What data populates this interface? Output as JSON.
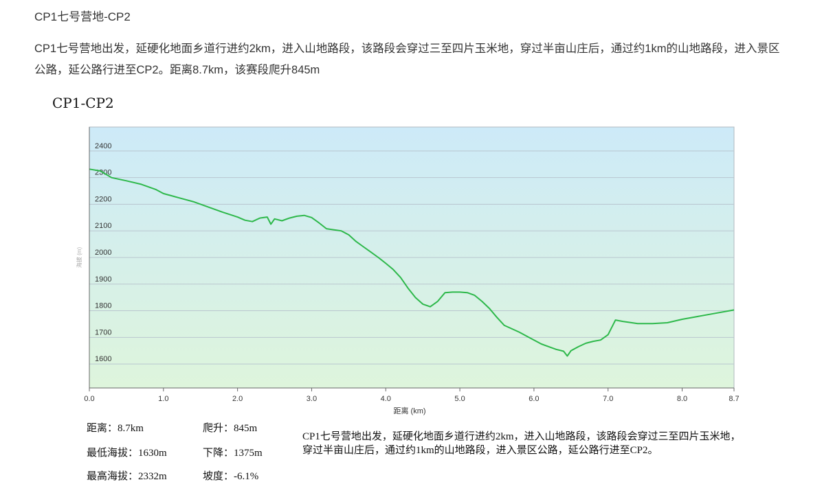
{
  "article": {
    "heading": "CP1七号营地-CP2",
    "description": "CP1七号营地出发，延硬化地面乡道行进约2km，进入山地路段，该路段会穿过三至四片玉米地，穿过半亩山庄后，通过约1km的山地路段，进入景区公路，延公路行进至CP2。距离8.7km，该赛段爬升845m"
  },
  "chart_data": {
    "type": "area",
    "title": "CP1-CP2",
    "xlabel": "距离 (km)",
    "ylabel": "海拔 (m)",
    "xlim": [
      0,
      8.7
    ],
    "ylim": [
      1510,
      2490
    ],
    "x_ticks": [
      "0.0",
      "1.0",
      "2.0",
      "3.0",
      "4.0",
      "5.0",
      "6.0",
      "7.0",
      "8.0",
      "8.7"
    ],
    "y_ticks": [
      "1600",
      "1700",
      "1800",
      "1900",
      "2000",
      "2100",
      "2200",
      "2300",
      "2400"
    ],
    "grid": true,
    "colors": {
      "line": "#2db84a",
      "fill_top": "#cdeaf8",
      "fill_bottom": "#def5dc",
      "grid": "#b9c6cf"
    },
    "series": [
      {
        "x": [
          0.0,
          0.15,
          0.3,
          0.5,
          0.7,
          0.9,
          1.0,
          1.2,
          1.4,
          1.6,
          1.8,
          2.0,
          2.1,
          2.2,
          2.3,
          2.4,
          2.45,
          2.5,
          2.6,
          2.7,
          2.8,
          2.9,
          3.0,
          3.1,
          3.2,
          3.4,
          3.5,
          3.6,
          3.7,
          3.8,
          3.9,
          4.0,
          4.1,
          4.2,
          4.3,
          4.4,
          4.5,
          4.6,
          4.7,
          4.8,
          4.9,
          5.0,
          5.1,
          5.2,
          5.3,
          5.4,
          5.5,
          5.6,
          5.8,
          6.0,
          6.1,
          6.2,
          6.3,
          6.4,
          6.45,
          6.5,
          6.6,
          6.7,
          6.8,
          6.9,
          7.0,
          7.1,
          7.2,
          7.4,
          7.6,
          7.8,
          8.0,
          8.2,
          8.4,
          8.7
        ],
        "values": [
          2332,
          2325,
          2300,
          2288,
          2275,
          2255,
          2240,
          2225,
          2210,
          2190,
          2170,
          2152,
          2140,
          2135,
          2148,
          2152,
          2125,
          2145,
          2138,
          2148,
          2155,
          2158,
          2150,
          2130,
          2108,
          2100,
          2085,
          2060,
          2040,
          2020,
          2000,
          1978,
          1955,
          1925,
          1885,
          1850,
          1825,
          1815,
          1835,
          1868,
          1870,
          1870,
          1868,
          1858,
          1835,
          1808,
          1775,
          1745,
          1720,
          1690,
          1675,
          1665,
          1655,
          1648,
          1630,
          1650,
          1665,
          1678,
          1685,
          1690,
          1710,
          1765,
          1760,
          1752,
          1752,
          1755,
          1768,
          1778,
          1788,
          1803
        ]
      }
    ]
  },
  "stats": {
    "distance": "距离：8.7km",
    "min_altitude": "最低海拔：1630m",
    "max_altitude": "最高海拔：2332m",
    "climb": "爬升：845m",
    "descent": "下降：1375m",
    "grade": "坡度：-6.1%"
  },
  "summary": "CP1七号营地出发，延硬化地面乡道行进约2km，进入山地路段，该路段会穿过三至四片玉米地，穿过半亩山庄后，通过约1km的山地路段，进入景区公路，延公路行进至CP2。"
}
